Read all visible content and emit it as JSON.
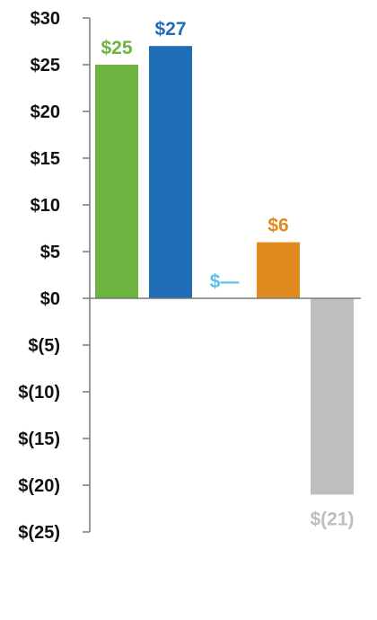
{
  "chart_data": {
    "type": "bar",
    "ylim": [
      -25,
      30
    ],
    "yticks": [
      30,
      25,
      20,
      15,
      10,
      5,
      0,
      -5,
      -10,
      -15,
      -20,
      -25
    ],
    "ytick_labels": [
      "$30",
      "$25",
      "$20",
      "$15",
      "$10",
      "$5",
      "$0",
      "$(5)",
      "$(10)",
      "$(15)",
      "$(20)",
      "$(25)"
    ],
    "grid": false,
    "bars": [
      {
        "value": 25,
        "label": "$25",
        "color": "#6DB33F"
      },
      {
        "value": 27,
        "label": "$27",
        "color": "#1F6DB5"
      },
      {
        "value": 0,
        "label": "$—",
        "color": "#5BC0EB"
      },
      {
        "value": 6,
        "label": "$6",
        "color": "#E08A1E"
      },
      {
        "value": -21,
        "label": "$(21)",
        "color": "#BDBEC0"
      }
    ]
  }
}
